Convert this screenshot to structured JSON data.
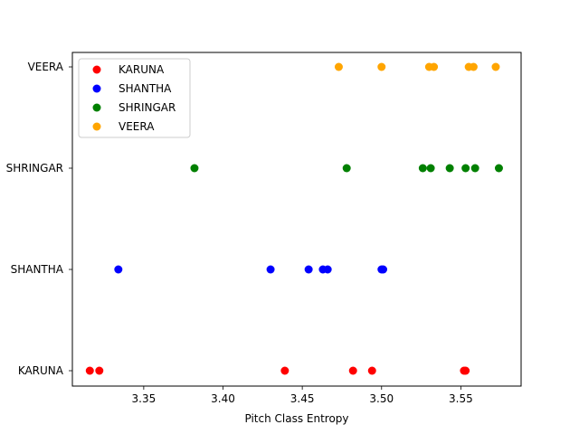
{
  "chart_data": {
    "type": "scatter",
    "title": "",
    "xlabel": "Pitch Class Entropy",
    "ylabel": "",
    "xlim": [
      3.305,
      3.588
    ],
    "x_ticks": [
      "3.35",
      "3.40",
      "3.45",
      "3.50",
      "3.55"
    ],
    "x_tick_values": [
      3.35,
      3.4,
      3.45,
      3.5,
      3.55
    ],
    "categories": [
      "KARUNA",
      "SHANTHA",
      "SHRINGAR",
      "VEERA"
    ],
    "grid": false,
    "legend_position": "top-left",
    "series": [
      {
        "name": "KARUNA",
        "color": "#ff0000",
        "category": "KARUNA",
        "x": [
          3.316,
          3.322,
          3.439,
          3.482,
          3.494,
          3.552,
          3.553
        ]
      },
      {
        "name": "SHANTHA",
        "color": "#0000ff",
        "category": "SHANTHA",
        "x": [
          3.334,
          3.43,
          3.454,
          3.463,
          3.466,
          3.5,
          3.501
        ]
      },
      {
        "name": "SHRINGAR",
        "color": "#008000",
        "category": "SHRINGAR",
        "x": [
          3.382,
          3.478,
          3.526,
          3.531,
          3.543,
          3.553,
          3.559,
          3.574
        ]
      },
      {
        "name": "VEERA",
        "color": "#ffa500",
        "category": "VEERA",
        "x": [
          3.473,
          3.5,
          3.53,
          3.533,
          3.555,
          3.558,
          3.572
        ]
      }
    ]
  }
}
